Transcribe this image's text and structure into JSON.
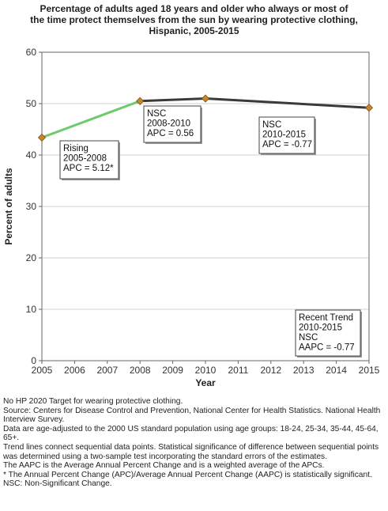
{
  "chart_data": {
    "type": "line",
    "title_lines": [
      "Percentage of adults aged 18 years and older who always or most of",
      "the time protect themselves from the sun by wearing protective clothing,",
      "Hispanic,  2005-2015"
    ],
    "xlabel": "Year",
    "ylabel": "Percent of adults",
    "x_ticks": [
      "2005",
      "2006",
      "2007",
      "2008",
      "2009",
      "2010",
      "2011",
      "2012",
      "2013",
      "2014",
      "2015"
    ],
    "y_ticks": [
      "0",
      "10",
      "20",
      "30",
      "40",
      "50",
      "60"
    ],
    "xlim": [
      2005,
      2015
    ],
    "ylim": [
      0,
      60
    ],
    "grid": "horizontal",
    "points": [
      {
        "x": 2005,
        "y": 43.4
      },
      {
        "x": 2008,
        "y": 50.5
      },
      {
        "x": 2010,
        "y": 51.0
      },
      {
        "x": 2015,
        "y": 49.2
      }
    ],
    "segments": [
      {
        "from": 2005,
        "to": 2008,
        "color": "#6ccb6c"
      },
      {
        "from": 2008,
        "to": 2010,
        "color": "#3a3a3a"
      },
      {
        "from": 2010,
        "to": 2015,
        "color": "#3a3a3a"
      }
    ],
    "marker_color": "#c8862a",
    "annotations": [
      {
        "lines": [
          "Rising",
          "2005-2008",
          "APC =  5.12*"
        ]
      },
      {
        "lines": [
          "NSC",
          "2008-2010",
          "APC =  0.56"
        ]
      },
      {
        "lines": [
          "NSC",
          "2010-2015",
          "APC = -0.77"
        ]
      },
      {
        "lines": [
          "Recent Trend",
          "2010-2015",
          "NSC",
          "AAPC = -0.77"
        ]
      }
    ]
  },
  "notes": [
    "No HP 2020 Target for wearing protective clothing.",
    "Source: Centers for Disease Control and Prevention, National Center for Health Statistics. National Health Interview Survey.",
    "Data are age-adjusted to the 2000 US standard population using age groups: 18-24, 25-34, 35-44, 45-64, 65+.",
    "Trend lines connect sequential data points. Statistical significance of difference between sequential points was determined using a two-sample test incorporating the standard errors of the estimates.",
    "The AAPC is the Average Annual Percent Change and is a weighted average of the APCs.",
    "* The Annual Percent Change (APC)/Average Annual Percent Change (AAPC) is statistically significant.",
    "NSC: Non-Significant Change."
  ]
}
